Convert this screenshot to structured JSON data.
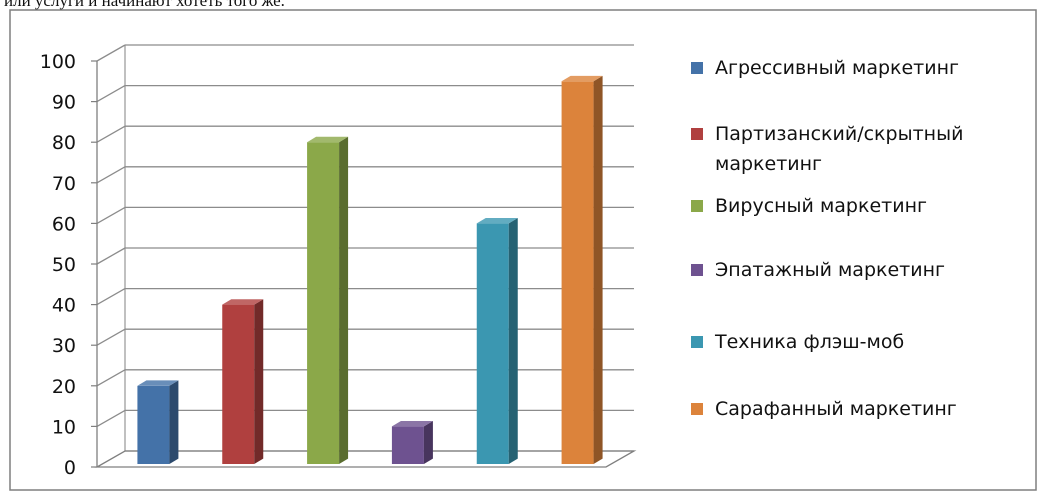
{
  "header": {
    "clipped_text": "или услуги и начинают хотеть того же."
  },
  "chart_data": {
    "type": "bar",
    "title": "",
    "xlabel": "",
    "ylabel": "",
    "ylim": [
      0,
      100
    ],
    "yticks": [
      "0",
      "10",
      "20",
      "30",
      "40",
      "50",
      "60",
      "70",
      "80",
      "90",
      "100"
    ],
    "grid": true,
    "style": "3d-columns",
    "legend_position": "right",
    "series": [
      {
        "name": "Агрессивный маркетинг",
        "value": 20,
        "color": "#4472A8"
      },
      {
        "name": "Партизанский/скрытный маркетинг",
        "value": 40,
        "color": "#B0403F"
      },
      {
        "name": "Вирусный маркетинг",
        "value": 80,
        "color": "#8BA849"
      },
      {
        "name": "Эпатажный маркетинг",
        "value": 10,
        "color": "#6E5290"
      },
      {
        "name": "Техника флэш-моб",
        "value": 60,
        "color": "#3B97B1"
      },
      {
        "name": "Сарафанный маркетинг",
        "value": 95,
        "color": "#DC833B"
      }
    ]
  }
}
